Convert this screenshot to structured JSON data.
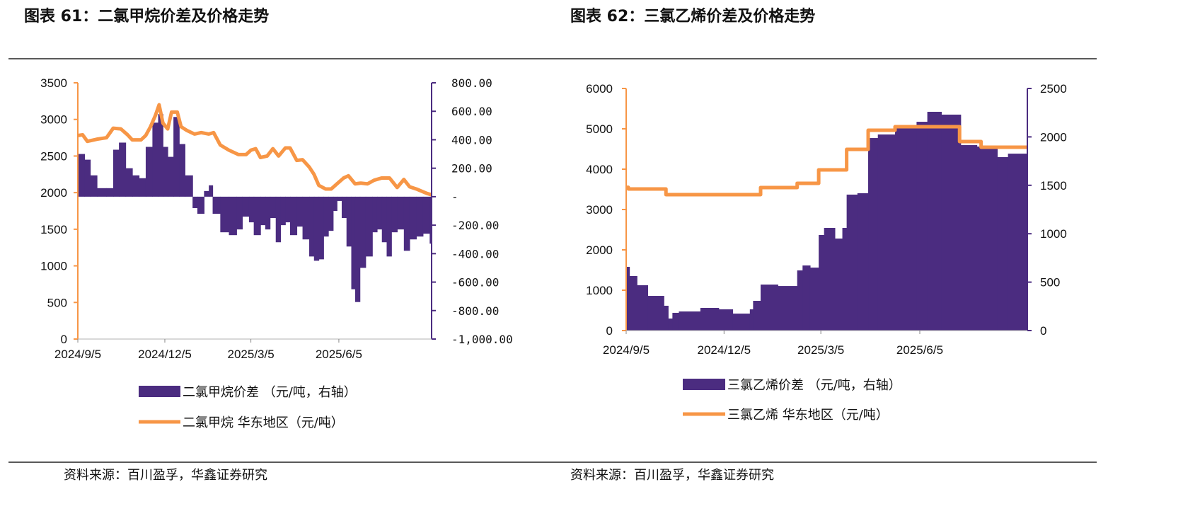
{
  "colors": {
    "bar": "#4B2C80",
    "line": "#F79646",
    "text": "#111111",
    "rule": "#222222"
  },
  "source_left": "资料来源：百川盈孚，华鑫证券研究",
  "source_right": "资料来源：百川盈孚，华鑫证券研究",
  "chart_data": [
    {
      "type": "bar+line",
      "title": "图表 61：二氯甲烷价差及价格走势",
      "x_ticks": [
        "2024/9/5",
        "2024/12/5",
        "2025/3/5",
        "2025/6/5"
      ],
      "x_tick_dates": [
        "2024-09-05",
        "2024-12-05",
        "2025-03-05",
        "2025-06-05"
      ],
      "xlim": [
        "2024-09-05",
        "2025-09-10"
      ],
      "y_left": {
        "lim": [
          0,
          3500
        ],
        "ticks": [
          "0",
          "500",
          "1000",
          "1500",
          "2000",
          "2500",
          "3000",
          "3500"
        ],
        "values": [
          0,
          500,
          1000,
          1500,
          2000,
          2500,
          3000,
          3500
        ]
      },
      "y_right": {
        "lim": [
          -1000,
          800
        ],
        "ticks": [
          "-1,000.00",
          "-800.00",
          "-600.00",
          "-400.00",
          "-200.00",
          "-",
          "200.00",
          "400.00",
          "600.00",
          "800.00"
        ],
        "values": [
          -1000,
          -800,
          -600,
          -400,
          -200,
          0,
          200,
          400,
          600,
          800
        ]
      },
      "legend": [
        "二氯甲烷价差 （元/吨，右轴）",
        "二氯甲烷 华东地区（元/吨）"
      ],
      "series": [
        {
          "name": "二氯甲烷价差 （元/吨，右轴）",
          "kind": "bar",
          "axis": "right",
          "points": [
            [
              "2024-09-05",
              300
            ],
            [
              "2024-09-12",
              260
            ],
            [
              "2024-09-18",
              150
            ],
            [
              "2024-09-25",
              60
            ],
            [
              "2024-10-05",
              60
            ],
            [
              "2024-10-12",
              330
            ],
            [
              "2024-10-18",
              380
            ],
            [
              "2024-10-25",
              200
            ],
            [
              "2024-11-01",
              150
            ],
            [
              "2024-11-08",
              130
            ],
            [
              "2024-11-15",
              350
            ],
            [
              "2024-11-22",
              520
            ],
            [
              "2024-11-28",
              580
            ],
            [
              "2024-12-03",
              350
            ],
            [
              "2024-12-08",
              280
            ],
            [
              "2024-12-14",
              560
            ],
            [
              "2024-12-20",
              370
            ],
            [
              "2024-12-26",
              150
            ],
            [
              "2025-01-03",
              -80
            ],
            [
              "2025-01-08",
              -120
            ],
            [
              "2025-01-15",
              40
            ],
            [
              "2025-01-20",
              80
            ],
            [
              "2025-01-24",
              -120
            ],
            [
              "2025-02-01",
              -250
            ],
            [
              "2025-02-10",
              -270
            ],
            [
              "2025-02-18",
              -230
            ],
            [
              "2025-02-24",
              -140
            ],
            [
              "2025-03-03",
              -180
            ],
            [
              "2025-03-08",
              -270
            ],
            [
              "2025-03-15",
              -200
            ],
            [
              "2025-03-20",
              -230
            ],
            [
              "2025-03-25",
              -150
            ],
            [
              "2025-03-31",
              -320
            ],
            [
              "2025-04-05",
              -200
            ],
            [
              "2025-04-10",
              -180
            ],
            [
              "2025-04-15",
              -270
            ],
            [
              "2025-04-22",
              -210
            ],
            [
              "2025-04-28",
              -300
            ],
            [
              "2025-05-05",
              -420
            ],
            [
              "2025-05-10",
              -450
            ],
            [
              "2025-05-15",
              -440
            ],
            [
              "2025-05-20",
              -280
            ],
            [
              "2025-05-25",
              -240
            ],
            [
              "2025-05-30",
              -100
            ],
            [
              "2025-06-03",
              -30
            ],
            [
              "2025-06-08",
              -150
            ],
            [
              "2025-06-13",
              -350
            ],
            [
              "2025-06-18",
              -650
            ],
            [
              "2025-06-22",
              -740
            ],
            [
              "2025-06-27",
              -500
            ],
            [
              "2025-07-03",
              -420
            ],
            [
              "2025-07-10",
              -250
            ],
            [
              "2025-07-15",
              -230
            ],
            [
              "2025-07-20",
              -320
            ],
            [
              "2025-07-25",
              -420
            ],
            [
              "2025-07-30",
              -250
            ],
            [
              "2025-08-05",
              -230
            ],
            [
              "2025-08-12",
              -380
            ],
            [
              "2025-08-18",
              -300
            ],
            [
              "2025-08-25",
              -280
            ],
            [
              "2025-09-01",
              -260
            ],
            [
              "2025-09-08",
              -330
            ]
          ]
        },
        {
          "name": "二氯甲烷 华东地区（元/吨）",
          "kind": "line",
          "axis": "left",
          "points": [
            [
              "2024-09-05",
              2780
            ],
            [
              "2024-09-10",
              2790
            ],
            [
              "2024-09-15",
              2700
            ],
            [
              "2024-09-25",
              2730
            ],
            [
              "2024-10-05",
              2750
            ],
            [
              "2024-10-12",
              2880
            ],
            [
              "2024-10-20",
              2870
            ],
            [
              "2024-10-27",
              2790
            ],
            [
              "2024-11-01",
              2720
            ],
            [
              "2024-11-10",
              2720
            ],
            [
              "2024-11-15",
              2780
            ],
            [
              "2024-11-20",
              2900
            ],
            [
              "2024-11-25",
              3050
            ],
            [
              "2024-11-29",
              3200
            ],
            [
              "2024-12-03",
              2950
            ],
            [
              "2024-12-08",
              2870
            ],
            [
              "2024-12-12",
              3100
            ],
            [
              "2024-12-18",
              3100
            ],
            [
              "2024-12-22",
              2900
            ],
            [
              "2024-12-28",
              2850
            ],
            [
              "2025-01-05",
              2800
            ],
            [
              "2025-01-12",
              2820
            ],
            [
              "2025-01-20",
              2800
            ],
            [
              "2025-01-25",
              2820
            ],
            [
              "2025-02-01",
              2650
            ],
            [
              "2025-02-10",
              2580
            ],
            [
              "2025-02-20",
              2520
            ],
            [
              "2025-02-28",
              2520
            ],
            [
              "2025-03-05",
              2580
            ],
            [
              "2025-03-10",
              2600
            ],
            [
              "2025-03-15",
              2480
            ],
            [
              "2025-03-22",
              2500
            ],
            [
              "2025-03-28",
              2600
            ],
            [
              "2025-04-03",
              2500
            ],
            [
              "2025-04-10",
              2610
            ],
            [
              "2025-04-15",
              2610
            ],
            [
              "2025-04-22",
              2440
            ],
            [
              "2025-04-28",
              2450
            ],
            [
              "2025-05-05",
              2350
            ],
            [
              "2025-05-10",
              2250
            ],
            [
              "2025-05-15",
              2100
            ],
            [
              "2025-05-22",
              2050
            ],
            [
              "2025-05-28",
              2050
            ],
            [
              "2025-06-03",
              2120
            ],
            [
              "2025-06-10",
              2200
            ],
            [
              "2025-06-15",
              2230
            ],
            [
              "2025-06-22",
              2120
            ],
            [
              "2025-06-28",
              2130
            ],
            [
              "2025-07-05",
              2120
            ],
            [
              "2025-07-12",
              2170
            ],
            [
              "2025-07-20",
              2200
            ],
            [
              "2025-07-28",
              2200
            ],
            [
              "2025-08-05",
              2070
            ],
            [
              "2025-08-12",
              2180
            ],
            [
              "2025-08-18",
              2080
            ],
            [
              "2025-08-25",
              2050
            ],
            [
              "2025-09-05",
              1990
            ],
            [
              "2025-09-10",
              1970
            ]
          ]
        }
      ]
    },
    {
      "type": "bar+line",
      "title": "图表 62：三氯乙烯价差及价格走势",
      "x_ticks": [
        "2024/9/5",
        "2024/12/5",
        "2025/3/5",
        "2025/6/5"
      ],
      "x_tick_dates": [
        "2024-09-05",
        "2024-12-05",
        "2025-03-05",
        "2025-06-05"
      ],
      "xlim": [
        "2024-09-05",
        "2025-09-13"
      ],
      "y_left": {
        "lim": [
          0,
          6000
        ],
        "ticks": [
          "0",
          "1000",
          "2000",
          "3000",
          "4000",
          "5000",
          "6000"
        ],
        "values": [
          0,
          1000,
          2000,
          3000,
          4000,
          5000,
          6000
        ]
      },
      "y_right": {
        "lim": [
          0,
          2500
        ],
        "ticks": [
          "0",
          "500",
          "1000",
          "1500",
          "2000",
          "2500"
        ],
        "values": [
          0,
          500,
          1000,
          1500,
          2000,
          2500
        ]
      },
      "legend": [
        "三氯乙烯价差 （元/吨，右轴）",
        "三氯乙烯 华东地区（元/吨）"
      ],
      "series": [
        {
          "name": "三氯乙烯价差 （元/吨，右轴）",
          "kind": "bar",
          "axis": "right",
          "points": [
            [
              "2024-09-05",
              658
            ],
            [
              "2024-09-08",
              563
            ],
            [
              "2024-09-15",
              468
            ],
            [
              "2024-09-25",
              358
            ],
            [
              "2024-10-10",
              256
            ],
            [
              "2024-10-14",
              124
            ],
            [
              "2024-10-18",
              183
            ],
            [
              "2024-10-24",
              197
            ],
            [
              "2024-11-13",
              234
            ],
            [
              "2024-11-30",
              219
            ],
            [
              "2024-12-13",
              175
            ],
            [
              "2024-12-29",
              219
            ],
            [
              "2025-01-01",
              307
            ],
            [
              "2025-01-08",
              475
            ],
            [
              "2025-01-24",
              460
            ],
            [
              "2025-02-11",
              621
            ],
            [
              "2025-02-16",
              672
            ],
            [
              "2025-02-23",
              650
            ],
            [
              "2025-03-03",
              987
            ],
            [
              "2025-03-08",
              1060
            ],
            [
              "2025-03-18",
              950
            ],
            [
              "2025-03-25",
              1060
            ],
            [
              "2025-03-29",
              1404
            ],
            [
              "2025-04-08",
              1418
            ],
            [
              "2025-04-18",
              1988
            ],
            [
              "2025-04-27",
              2025
            ],
            [
              "2025-05-13",
              2098
            ],
            [
              "2025-06-02",
              2156
            ],
            [
              "2025-06-12",
              2259
            ],
            [
              "2025-06-25",
              2230
            ],
            [
              "2025-07-13",
              1915
            ],
            [
              "2025-07-28",
              1900
            ],
            [
              "2025-08-16",
              1791
            ],
            [
              "2025-08-26",
              1827
            ],
            [
              "2025-09-13",
              1842
            ]
          ]
        },
        {
          "name": "三氯乙烯 华东地区（元/吨）",
          "kind": "step-line",
          "axis": "left",
          "points": [
            [
              "2024-09-05",
              3550
            ],
            [
              "2024-09-07",
              3509
            ],
            [
              "2024-10-12",
              3368
            ],
            [
              "2025-01-08",
              3544
            ],
            [
              "2025-02-11",
              3650
            ],
            [
              "2025-03-03",
              3982
            ],
            [
              "2025-03-29",
              4491
            ],
            [
              "2025-04-18",
              4965
            ],
            [
              "2025-05-13",
              5053
            ],
            [
              "2025-07-12",
              4684
            ],
            [
              "2025-08-01",
              4544
            ],
            [
              "2025-09-13",
              4544
            ]
          ]
        }
      ]
    }
  ]
}
